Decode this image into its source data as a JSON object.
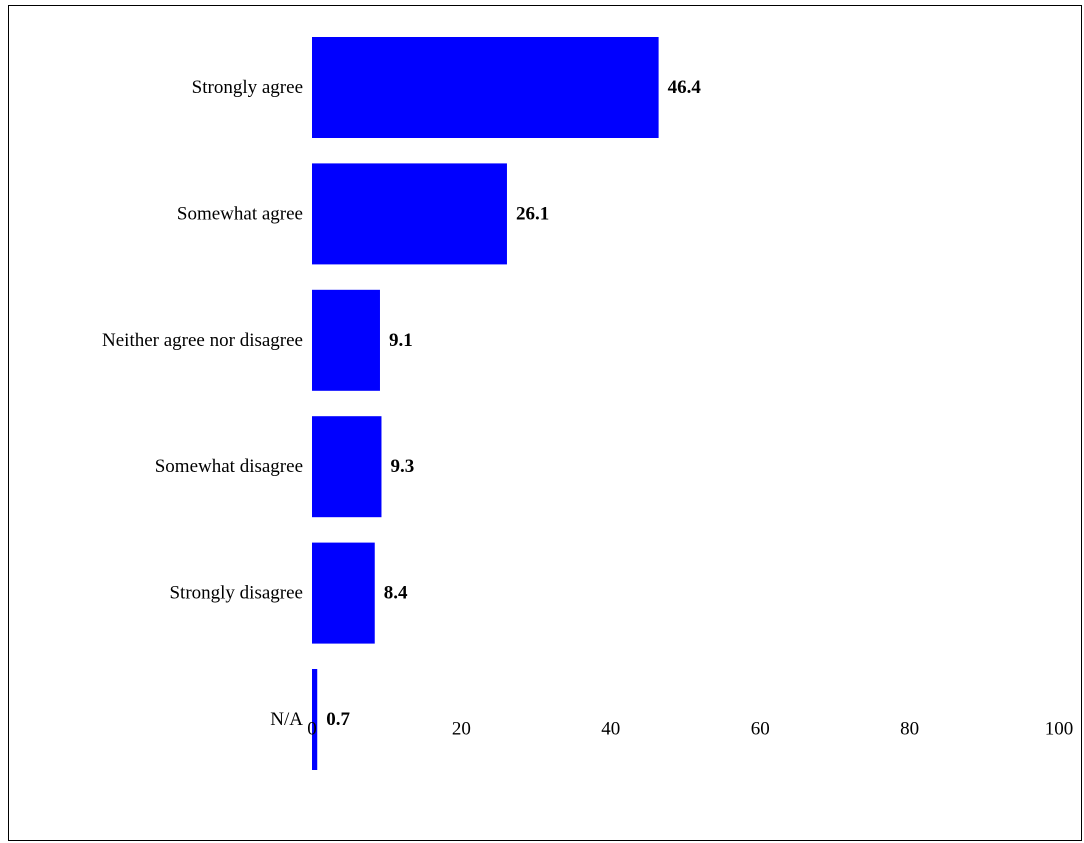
{
  "chart_data": {
    "type": "bar",
    "orientation": "horizontal",
    "categories": [
      "Strongly agree",
      "Somewhat agree",
      "Neither agree nor disagree",
      "Somewhat disagree",
      "Strongly disagree",
      "N/A"
    ],
    "values": [
      46.4,
      26.1,
      9.1,
      9.3,
      8.4,
      0.7
    ],
    "value_labels": [
      "46.4",
      "26.1",
      "9.1",
      "9.3",
      "8.4",
      "0.7"
    ],
    "title": "",
    "xlabel": "",
    "ylabel": "",
    "xlim": [
      0,
      100
    ],
    "x_ticks": [
      0,
      20,
      40,
      60,
      80,
      100
    ],
    "x_tick_labels": [
      "0",
      "20",
      "40",
      "60",
      "80",
      "100"
    ],
    "grid": false,
    "legend": "none",
    "bar_color": "#0000ff"
  }
}
